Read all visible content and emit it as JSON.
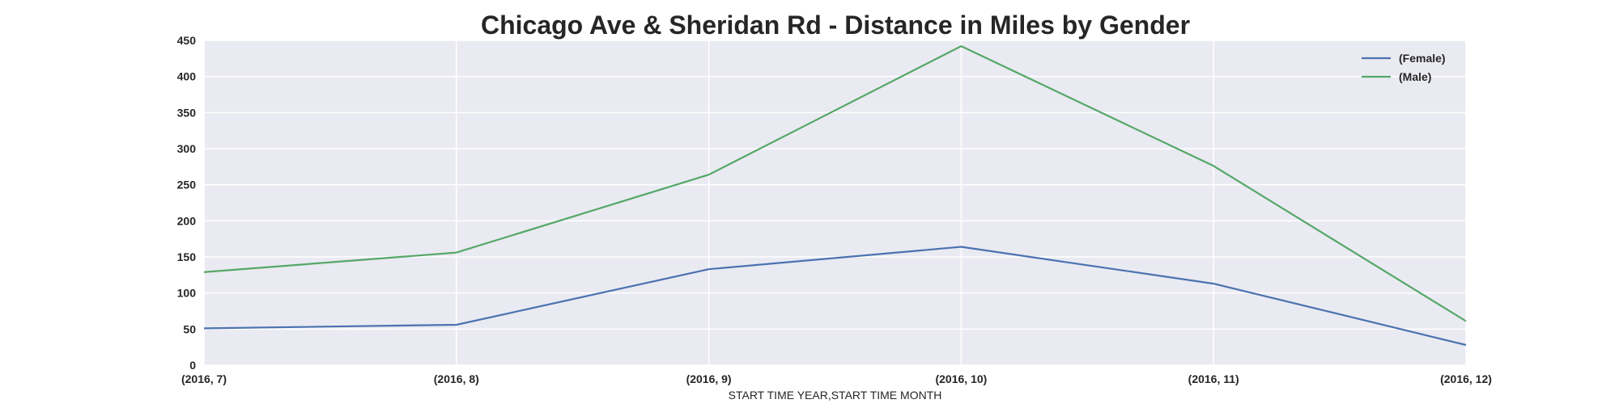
{
  "chart_data": {
    "type": "line",
    "title": "Chicago Ave & Sheridan Rd - Distance in Miles by Gender",
    "xlabel": "START TIME YEAR,START TIME MONTH",
    "ylabel": "",
    "categories": [
      "(2016, 7)",
      "(2016, 8)",
      "(2016, 9)",
      "(2016, 10)",
      "(2016, 11)",
      "(2016, 12)"
    ],
    "ylim": [
      0,
      450
    ],
    "yticks": [
      0,
      50,
      100,
      150,
      200,
      250,
      300,
      350,
      400,
      450
    ],
    "grid": true,
    "legend_position": "top-right",
    "series": [
      {
        "name": "(Female)",
        "color": "#4c72b0",
        "values": [
          51,
          56,
          133,
          164,
          113,
          28
        ]
      },
      {
        "name": "(Male)",
        "color": "#55a868",
        "values": [
          129,
          156,
          264,
          442,
          276,
          61
        ]
      }
    ]
  },
  "colors": {
    "plot_background": "#eaeaf2",
    "grid": "#ffffff",
    "text": "#262626"
  }
}
